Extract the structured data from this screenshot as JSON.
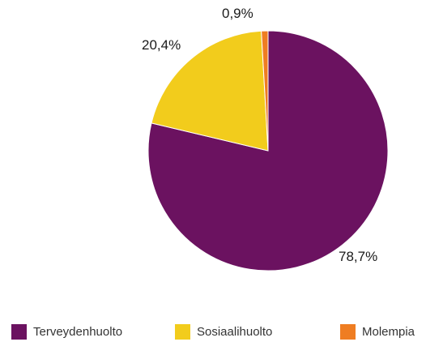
{
  "chart_data": {
    "type": "pie",
    "title": "",
    "slices": [
      {
        "label": "Terveydenhuolto",
        "value": 78.7,
        "display": "78,7%",
        "color": "#6b1260"
      },
      {
        "label": "Sosiaalihuolto",
        "value": 20.4,
        "display": "20,4%",
        "color": "#f2cc1c"
      },
      {
        "label": "Molempia",
        "value": 0.9,
        "display": "0,9%",
        "color": "#ef7d22"
      }
    ],
    "legend_position": "bottom"
  }
}
